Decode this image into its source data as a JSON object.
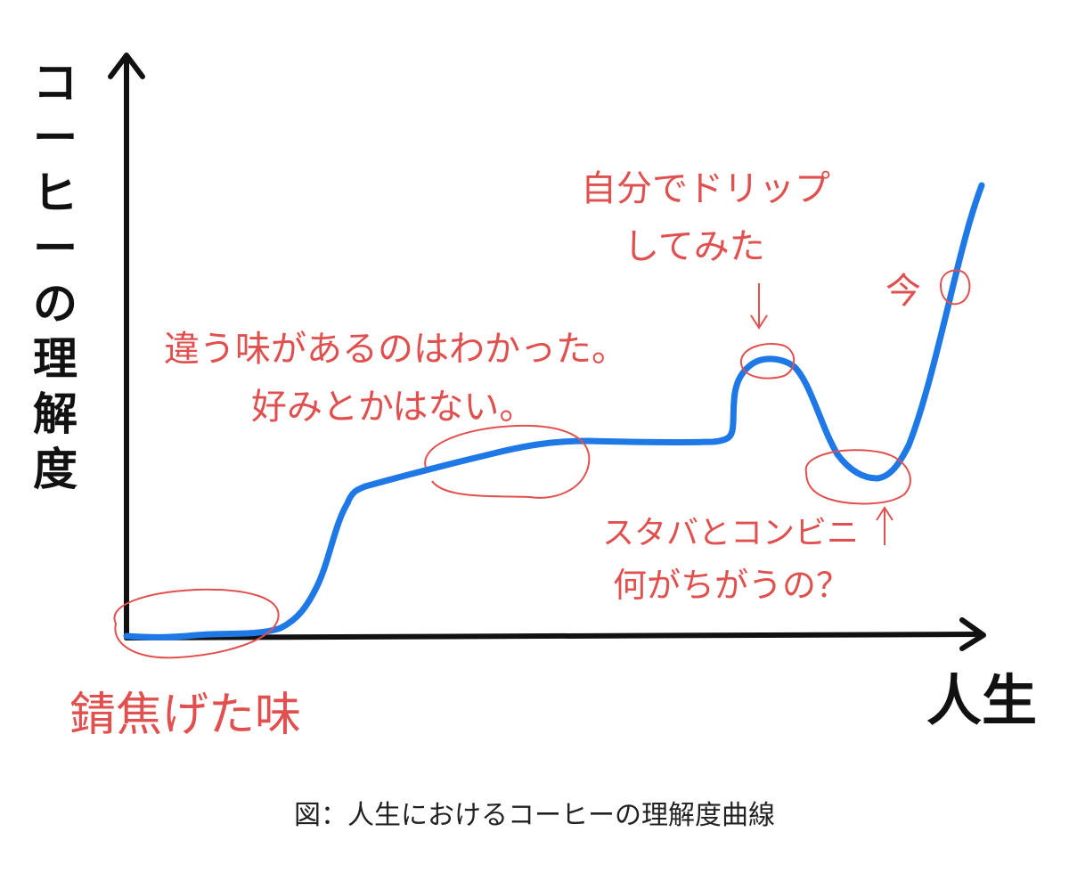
{
  "diagram": {
    "y_axis_label": "コーヒーの理解度",
    "x_axis_label": "人生",
    "caption": "図：人生におけるコーヒーの理解度曲線",
    "colors": {
      "axis": "#111111",
      "curve": "#1e78e6",
      "annotation": "#e0504f"
    },
    "annotations": {
      "burnt": "錆焦げた味",
      "different_1": "違う味があるのはわかった。",
      "different_2": "好みとかはない。",
      "drip_1": "自分でドリップ",
      "drip_2": "してみた",
      "now": "今",
      "starbucks_1": "スタバとコンビニ",
      "starbucks_2": "何がちがうの？"
    }
  }
}
